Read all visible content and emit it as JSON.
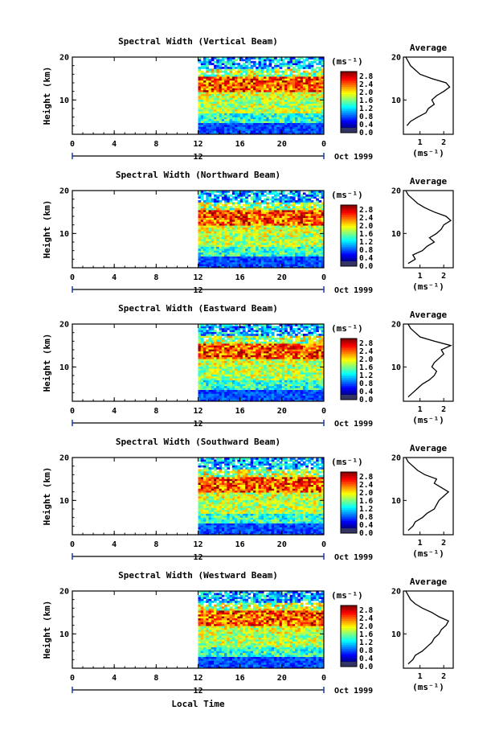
{
  "figure": {
    "xlabel": "Local Time",
    "date_label": "Oct 1999",
    "day_label": "12",
    "ylabel": "Height (km)",
    "colorbar_unit": "(ms⁻¹)",
    "average_title": "Average",
    "average_xlabel": "(ms⁻¹)"
  },
  "chart_data": [
    {
      "type": "heatmap",
      "title": "Spectral Width (Vertical Beam)",
      "xlim": [
        0,
        24
      ],
      "ylim": [
        2,
        20
      ],
      "xticks": [
        "0",
        "4",
        "8",
        "12",
        "16",
        "20",
        "0"
      ],
      "yticks": [
        "20",
        "10"
      ],
      "data_start": 12,
      "colorbar": {
        "min": 0.0,
        "max": 3.0,
        "ticks": [
          "2.8",
          "2.4",
          "2.0",
          "1.6",
          "1.2",
          "0.8",
          "0.4",
          "0.0"
        ]
      },
      "average": {
        "xticks": [
          "1",
          "2"
        ],
        "xlim": [
          0.3,
          2.4
        ],
        "profile": [
          [
            4,
            0.45
          ],
          [
            5,
            0.6
          ],
          [
            6,
            0.9
          ],
          [
            7,
            1.25
          ],
          [
            8,
            1.35
          ],
          [
            9,
            1.6
          ],
          [
            10,
            1.5
          ],
          [
            11,
            1.7
          ],
          [
            12,
            2.0
          ],
          [
            13,
            2.25
          ],
          [
            14,
            2.1
          ],
          [
            15,
            1.5
          ],
          [
            16,
            1.0
          ],
          [
            17,
            0.8
          ],
          [
            18,
            0.6
          ],
          [
            19,
            0.5
          ],
          [
            20,
            0.4
          ]
        ]
      }
    },
    {
      "type": "heatmap",
      "title": "Spectral Width (Northward Beam)",
      "xlim": [
        0,
        24
      ],
      "ylim": [
        2,
        20
      ],
      "xticks": [
        "0",
        "4",
        "8",
        "12",
        "16",
        "20",
        "0"
      ],
      "yticks": [
        "20",
        "10"
      ],
      "data_start": 12,
      "colorbar": {
        "min": 0.0,
        "max": 3.0,
        "ticks": [
          "2.8",
          "2.4",
          "2.0",
          "1.6",
          "1.2",
          "0.8",
          "0.4",
          "0.0"
        ]
      },
      "average": {
        "xticks": [
          "1",
          "2"
        ],
        "xlim": [
          0.3,
          2.4
        ],
        "profile": [
          [
            3,
            0.5
          ],
          [
            4,
            0.8
          ],
          [
            5,
            0.7
          ],
          [
            6,
            1.1
          ],
          [
            7,
            1.3
          ],
          [
            8,
            1.6
          ],
          [
            9,
            1.4
          ],
          [
            10,
            1.7
          ],
          [
            11,
            1.9
          ],
          [
            12,
            2.0
          ],
          [
            13,
            2.3
          ],
          [
            14,
            2.1
          ],
          [
            15,
            1.6
          ],
          [
            16,
            1.2
          ],
          [
            17,
            0.9
          ],
          [
            18,
            0.7
          ],
          [
            19,
            0.5
          ],
          [
            20,
            0.4
          ]
        ]
      }
    },
    {
      "type": "heatmap",
      "title": "Spectral Width (Eastward Beam)",
      "xlim": [
        0,
        24
      ],
      "ylim": [
        2,
        20
      ],
      "xticks": [
        "0",
        "4",
        "8",
        "12",
        "16",
        "20",
        "0"
      ],
      "yticks": [
        "20",
        "10"
      ],
      "data_start": 12,
      "colorbar": {
        "min": 0.0,
        "max": 3.0,
        "ticks": [
          "2.8",
          "2.4",
          "2.0",
          "1.6",
          "1.2",
          "0.8",
          "0.4",
          "0.0"
        ]
      },
      "average": {
        "xticks": [
          "1",
          "2"
        ],
        "xlim": [
          0.3,
          2.4
        ],
        "profile": [
          [
            3,
            0.5
          ],
          [
            4,
            0.7
          ],
          [
            5,
            0.9
          ],
          [
            6,
            1.1
          ],
          [
            7,
            1.4
          ],
          [
            8,
            1.6
          ],
          [
            9,
            1.7
          ],
          [
            10,
            1.5
          ],
          [
            11,
            1.6
          ],
          [
            12,
            1.8
          ],
          [
            13,
            2.0
          ],
          [
            14,
            1.9
          ],
          [
            15,
            2.3
          ],
          [
            16,
            1.6
          ],
          [
            17,
            1.0
          ],
          [
            18,
            0.8
          ],
          [
            19,
            0.6
          ],
          [
            20,
            0.5
          ]
        ]
      }
    },
    {
      "type": "heatmap",
      "title": "Spectral Width (Southward Beam)",
      "xlim": [
        0,
        24
      ],
      "ylim": [
        2,
        20
      ],
      "xticks": [
        "0",
        "4",
        "8",
        "12",
        "16",
        "20",
        "0"
      ],
      "yticks": [
        "20",
        "10"
      ],
      "data_start": 12,
      "colorbar": {
        "min": 0.0,
        "max": 3.0,
        "ticks": [
          "2.8",
          "2.4",
          "2.0",
          "1.6",
          "1.2",
          "0.8",
          "0.4",
          "0.0"
        ]
      },
      "average": {
        "xticks": [
          "1",
          "2"
        ],
        "xlim": [
          0.3,
          2.4
        ],
        "profile": [
          [
            3,
            0.5
          ],
          [
            4,
            0.7
          ],
          [
            5,
            0.8
          ],
          [
            6,
            1.1
          ],
          [
            7,
            1.3
          ],
          [
            8,
            1.6
          ],
          [
            9,
            1.7
          ],
          [
            10,
            1.8
          ],
          [
            11,
            2.0
          ],
          [
            12,
            2.2
          ],
          [
            13,
            1.9
          ],
          [
            14,
            1.6
          ],
          [
            15,
            1.7
          ],
          [
            16,
            1.2
          ],
          [
            17,
            0.9
          ],
          [
            18,
            0.7
          ],
          [
            19,
            0.5
          ],
          [
            20,
            0.4
          ]
        ]
      }
    },
    {
      "type": "heatmap",
      "title": "Spectral Width (Westward Beam)",
      "xlim": [
        0,
        24
      ],
      "ylim": [
        2,
        20
      ],
      "xticks": [
        "0",
        "4",
        "8",
        "12",
        "16",
        "20",
        "0"
      ],
      "yticks": [
        "20",
        "10"
      ],
      "data_start": 12,
      "colorbar": {
        "min": 0.0,
        "max": 3.0,
        "ticks": [
          "2.8",
          "2.4",
          "2.0",
          "1.6",
          "1.2",
          "0.8",
          "0.4",
          "0.0"
        ]
      },
      "average": {
        "xticks": [
          "1",
          "2"
        ],
        "xlim": [
          0.3,
          2.4
        ],
        "profile": [
          [
            3,
            0.5
          ],
          [
            4,
            0.7
          ],
          [
            5,
            0.8
          ],
          [
            6,
            1.1
          ],
          [
            7,
            1.3
          ],
          [
            8,
            1.5
          ],
          [
            9,
            1.6
          ],
          [
            10,
            1.8
          ],
          [
            11,
            1.9
          ],
          [
            12,
            2.1
          ],
          [
            13,
            2.2
          ],
          [
            14,
            1.8
          ],
          [
            15,
            1.5
          ],
          [
            16,
            1.1
          ],
          [
            17,
            0.8
          ],
          [
            18,
            0.6
          ],
          [
            19,
            0.5
          ],
          [
            20,
            0.4
          ]
        ]
      }
    }
  ]
}
